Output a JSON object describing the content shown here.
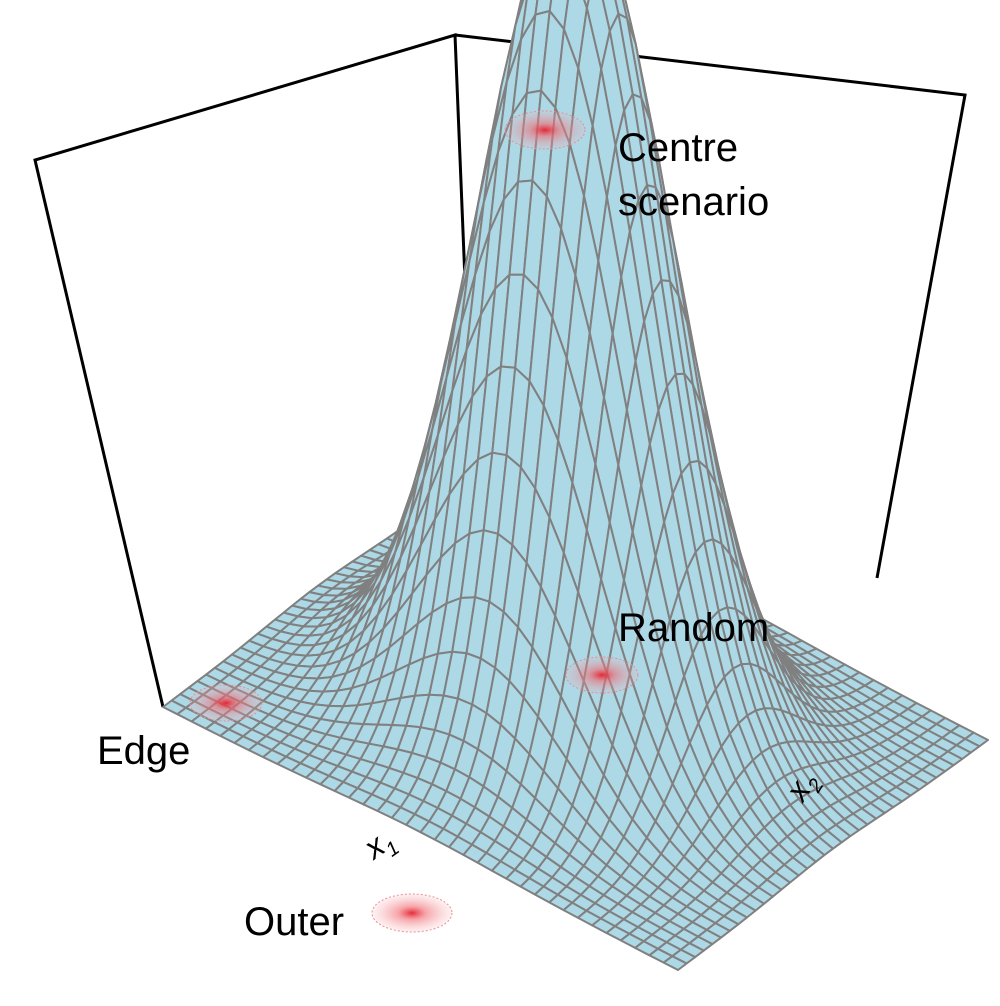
{
  "labels": {
    "centre_line1": "Centre",
    "centre_line2": "scenario",
    "random": "Random",
    "edge": "Edge",
    "outer": "Outer"
  },
  "axes": {
    "x1": {
      "base": "x",
      "sub": "1"
    },
    "x2": {
      "base": "x",
      "sub": "2"
    }
  },
  "colors": {
    "surface_fill": "#add8e6",
    "mesh_line": "#808080",
    "box_line": "#000000",
    "marker_core": "#e8303a",
    "marker_halo": "#f4a0a6"
  },
  "surface": {
    "function": "gaussian",
    "grid_cells": 36,
    "peak_height": 1.0,
    "sigma": 0.16
  }
}
